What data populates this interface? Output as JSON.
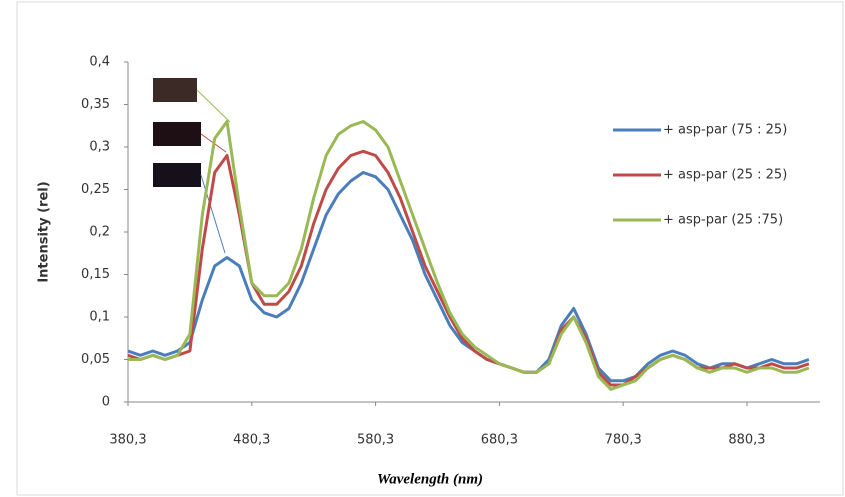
{
  "chart_data": {
    "type": "line",
    "y_label": "Intensity (rel)",
    "x_label": "Wavelength (nm)",
    "x": [
      380.3,
      390.3,
      400.3,
      410.3,
      420.3,
      430.3,
      440.3,
      450.3,
      460.3,
      470.3,
      480.3,
      490.3,
      500.3,
      510.3,
      520.3,
      530.3,
      540.3,
      550.3,
      560.3,
      570.3,
      580.3,
      590.3,
      600.3,
      610.3,
      620.3,
      630.3,
      640.3,
      650.3,
      660.3,
      670.3,
      680.3,
      690.3,
      700.3,
      710.3,
      720.3,
      730.3,
      740.3,
      750.3,
      760.3,
      770.3,
      780.3,
      790.3,
      800.3,
      810.3,
      820.3,
      830.3,
      840.3,
      850.3,
      860.3,
      870.3,
      880.3,
      890.3,
      900.3,
      910.3,
      920.3,
      930.3
    ],
    "series": [
      {
        "name": "+ asp-par (75 : 25)",
        "color": "#4a7ebb",
        "values": [
          0.06,
          0.055,
          0.06,
          0.055,
          0.06,
          0.07,
          0.12,
          0.16,
          0.17,
          0.16,
          0.12,
          0.105,
          0.1,
          0.11,
          0.14,
          0.18,
          0.22,
          0.245,
          0.26,
          0.27,
          0.265,
          0.25,
          0.22,
          0.19,
          0.15,
          0.12,
          0.09,
          0.07,
          0.06,
          0.05,
          0.045,
          0.04,
          0.035,
          0.035,
          0.05,
          0.09,
          0.11,
          0.08,
          0.04,
          0.025,
          0.025,
          0.03,
          0.045,
          0.055,
          0.06,
          0.055,
          0.045,
          0.04,
          0.045,
          0.045,
          0.04,
          0.045,
          0.05,
          0.045,
          0.045,
          0.05
        ]
      },
      {
        "name": "+ asp-par (25 : 25)",
        "color": "#be4b48",
        "values": [
          0.055,
          0.05,
          0.055,
          0.05,
          0.055,
          0.06,
          0.18,
          0.27,
          0.29,
          0.22,
          0.14,
          0.115,
          0.115,
          0.13,
          0.16,
          0.21,
          0.25,
          0.275,
          0.29,
          0.295,
          0.29,
          0.27,
          0.24,
          0.2,
          0.16,
          0.13,
          0.1,
          0.075,
          0.06,
          0.05,
          0.045,
          0.04,
          0.035,
          0.035,
          0.045,
          0.085,
          0.1,
          0.075,
          0.035,
          0.02,
          0.02,
          0.03,
          0.04,
          0.05,
          0.055,
          0.05,
          0.04,
          0.04,
          0.04,
          0.045,
          0.04,
          0.04,
          0.045,
          0.04,
          0.04,
          0.045
        ]
      },
      {
        "name": "+ asp-par (25 :75)",
        "color": "#98b954",
        "values": [
          0.05,
          0.05,
          0.055,
          0.05,
          0.055,
          0.08,
          0.22,
          0.31,
          0.33,
          0.23,
          0.14,
          0.125,
          0.125,
          0.14,
          0.18,
          0.24,
          0.29,
          0.315,
          0.325,
          0.33,
          0.32,
          0.3,
          0.26,
          0.22,
          0.18,
          0.14,
          0.105,
          0.08,
          0.065,
          0.055,
          0.045,
          0.04,
          0.035,
          0.035,
          0.045,
          0.08,
          0.1,
          0.07,
          0.03,
          0.015,
          0.02,
          0.025,
          0.04,
          0.05,
          0.055,
          0.05,
          0.04,
          0.035,
          0.04,
          0.04,
          0.035,
          0.04,
          0.04,
          0.035,
          0.035,
          0.04
        ]
      }
    ],
    "xlim": [
      380.3,
      939.3
    ],
    "ylim": [
      0,
      0.4
    ],
    "xticks": [
      {
        "value": 380.3,
        "label": "380,3"
      },
      {
        "value": 480.3,
        "label": "480,3"
      },
      {
        "value": 580.3,
        "label": "580,3"
      },
      {
        "value": 680.3,
        "label": "680,3"
      },
      {
        "value": 780.3,
        "label": "780,3"
      },
      {
        "value": 880.3,
        "label": "880,3"
      }
    ],
    "yticks": [
      0,
      {
        "value": 0.05,
        "label": "0,05"
      },
      {
        "value": 0.1,
        "label": "0,1"
      },
      {
        "value": 0.15,
        "label": "0,15"
      },
      {
        "value": 0.2,
        "label": "0,2"
      },
      {
        "value": 0.25,
        "label": "0,25"
      },
      {
        "value": 0.3,
        "label": "0,3"
      },
      {
        "value": 0.35,
        "label": "0,35"
      },
      {
        "value": 0.4,
        "label": "0,4"
      }
    ],
    "legend": "right"
  }
}
